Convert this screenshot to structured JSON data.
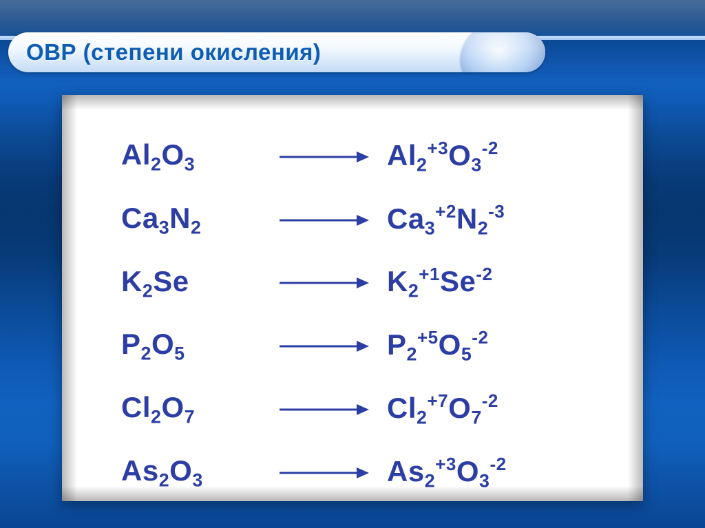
{
  "slide": {
    "title": "ОВР (степени окисления)",
    "title_color": "#0f5db3",
    "title_fontsize": 33,
    "formula_color": "#2c3ea4",
    "formula_fontsize": 42,
    "panel_background": "#ffffff",
    "page_gradient": [
      "#083a78",
      "#1161c0",
      "#0a4692"
    ],
    "arrow_color": "#2c3ea4"
  },
  "reactions": [
    {
      "lhs": [
        {
          "el": "Al",
          "sub": "2"
        },
        {
          "el": "O",
          "sub": "3"
        }
      ],
      "rhs": [
        {
          "el": "Al",
          "sub": "2",
          "sup": "+3"
        },
        {
          "el": "O",
          "sub": "3",
          "sup": "-2"
        }
      ]
    },
    {
      "lhs": [
        {
          "el": "Ca",
          "sub": "3"
        },
        {
          "el": "N",
          "sub": "2"
        }
      ],
      "rhs": [
        {
          "el": "Ca",
          "sub": "3",
          "sup": "+2"
        },
        {
          "el": "N",
          "sub": "2",
          "sup": "-3"
        }
      ]
    },
    {
      "lhs": [
        {
          "el": "K",
          "sub": "2"
        },
        {
          "el": "Se"
        }
      ],
      "rhs": [
        {
          "el": "K",
          "sub": "2",
          "sup": "+1"
        },
        {
          "el": "Se",
          "sup": "-2"
        }
      ]
    },
    {
      "lhs": [
        {
          "el": "P",
          "sub": "2"
        },
        {
          "el": "O",
          "sub": "5"
        }
      ],
      "rhs": [
        {
          "el": "P",
          "sub": "2",
          "sup": "+5"
        },
        {
          "el": "O",
          "sub": "5",
          "sup": "-2"
        }
      ]
    },
    {
      "lhs": [
        {
          "el": "Cl",
          "sub": "2"
        },
        {
          "el": "O",
          "sub": "7"
        }
      ],
      "rhs": [
        {
          "el": "Cl",
          "sub": "2",
          "sup": "+7"
        },
        {
          "el": "O",
          "sub": "7",
          "sup": "-2"
        }
      ]
    },
    {
      "lhs": [
        {
          "el": "As",
          "sub": "2"
        },
        {
          "el": "O",
          "sub": "3"
        }
      ],
      "rhs": [
        {
          "el": "As",
          "sub": "2",
          "sup": "+3"
        },
        {
          "el": "O",
          "sub": "3",
          "sup": "-2"
        }
      ]
    }
  ]
}
